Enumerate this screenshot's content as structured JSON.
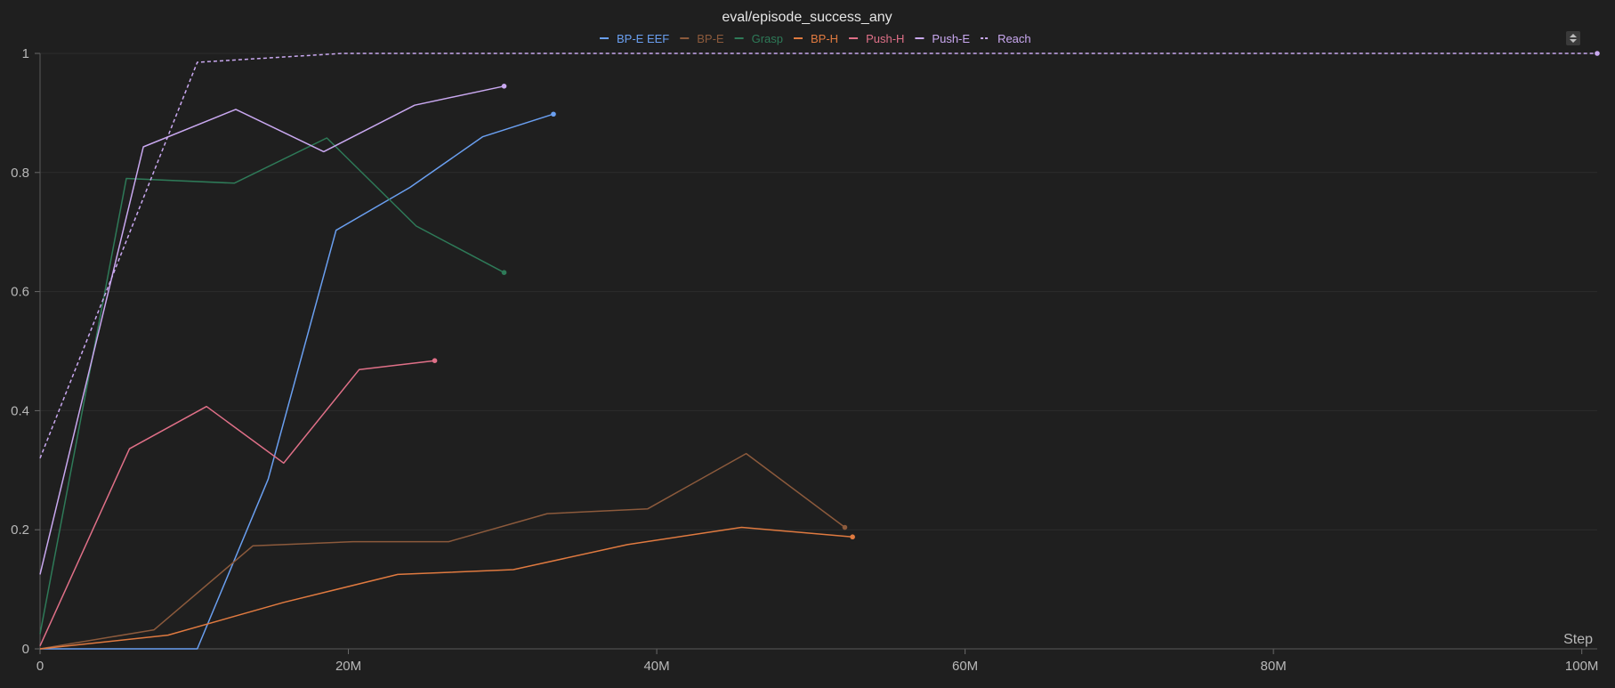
{
  "chart_data": {
    "type": "line",
    "title": "eval/episode_success_any",
    "xlabel": "Step",
    "ylabel": "",
    "xlim": [
      0,
      101000000
    ],
    "ylim": [
      0,
      1
    ],
    "x_ticks": [
      0,
      20000000,
      40000000,
      60000000,
      80000000,
      100000000
    ],
    "x_tick_labels": [
      "0",
      "20M",
      "40M",
      "60M",
      "80M",
      "100M"
    ],
    "y_ticks": [
      0,
      0.2,
      0.4,
      0.6,
      0.8,
      1
    ],
    "y_tick_labels": [
      "0",
      "0.2",
      "0.4",
      "0.6",
      "0.8",
      "1"
    ],
    "grid": true,
    "legend_position": "top-center",
    "series": [
      {
        "name": "BP-E EEF",
        "color": "#6a9ff0",
        "dash": false,
        "x": [
          0,
          10200000,
          14800000,
          19200000,
          24000000,
          28700000,
          33300000
        ],
        "y": [
          0,
          0,
          0.285,
          0.703,
          0.775,
          0.86,
          0.898
        ]
      },
      {
        "name": "BP-E",
        "color": "#8c5a3c",
        "dash": false,
        "x": [
          0,
          7400000,
          13800000,
          20300000,
          26500000,
          32900000,
          39400000,
          45800000,
          52200000
        ],
        "y": [
          0,
          0.032,
          0.173,
          0.18,
          0.18,
          0.227,
          0.235,
          0.328,
          0.204
        ]
      },
      {
        "name": "Grasp",
        "color": "#2e7a58",
        "dash": false,
        "x": [
          0,
          5600000,
          12600000,
          18600000,
          24400000,
          30100000
        ],
        "y": [
          0.025,
          0.79,
          0.782,
          0.858,
          0.71,
          0.632
        ]
      },
      {
        "name": "BP-H",
        "color": "#e07a40",
        "dash": false,
        "x": [
          0,
          8300000,
          15800000,
          23200000,
          30700000,
          38100000,
          45500000,
          52700000
        ],
        "y": [
          0,
          0.023,
          0.078,
          0.125,
          0.133,
          0.175,
          0.204,
          0.188
        ]
      },
      {
        "name": "Push-H",
        "color": "#e07088",
        "dash": false,
        "x": [
          0,
          5800000,
          10800000,
          15800000,
          20700000,
          25600000
        ],
        "y": [
          0.005,
          0.336,
          0.407,
          0.312,
          0.469,
          0.484
        ]
      },
      {
        "name": "Push-E",
        "color": "#c9a8f0",
        "dash": false,
        "x": [
          0,
          6700000,
          12700000,
          18400000,
          24300000,
          30100000
        ],
        "y": [
          0.125,
          0.843,
          0.906,
          0.835,
          0.913,
          0.945
        ]
      },
      {
        "name": "Reach",
        "color": "#c9a8f0",
        "dash": true,
        "x": [
          0,
          10200000,
          19600000,
          101000000
        ],
        "y": [
          0.32,
          0.985,
          1.0,
          1.0
        ]
      }
    ]
  }
}
